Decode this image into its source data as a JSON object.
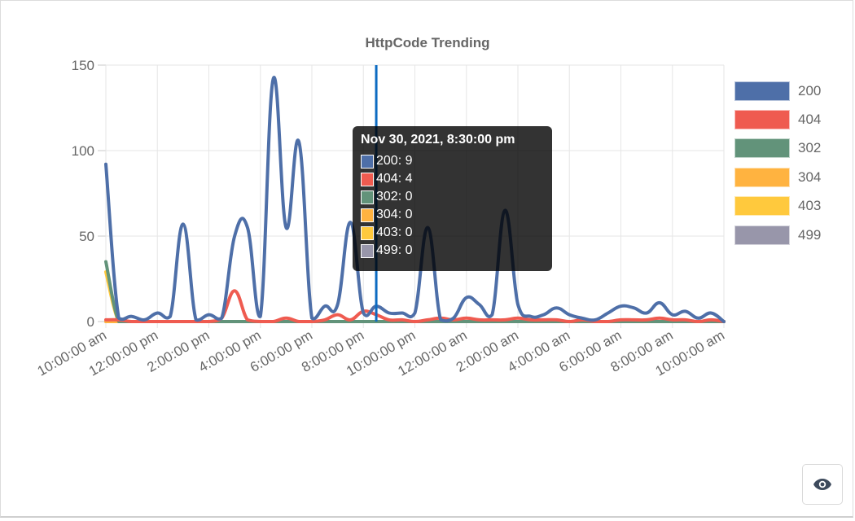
{
  "chart_data": {
    "type": "line",
    "title": "HttpCode Trending",
    "xlabel": "",
    "ylabel": "",
    "ylim": [
      0,
      150
    ],
    "yticks": [
      0,
      50,
      100,
      150
    ],
    "grid": true,
    "legend_position": "right",
    "x_tick_labels": [
      "10:00:00 am",
      "12:00:00 pm",
      "2:00:00 pm",
      "4:00:00 pm",
      "6:00:00 pm",
      "8:00:00 pm",
      "10:00:00 pm",
      "12:00:00 am",
      "2:00:00 am",
      "4:00:00 am",
      "6:00:00 am",
      "8:00:00 am",
      "10:00:00 am"
    ],
    "x": [
      "10:00 am",
      "10:30 am",
      "11:00 am",
      "11:30 am",
      "12:00 pm",
      "12:30 pm",
      "1:00 pm",
      "1:30 pm",
      "2:00 pm",
      "2:30 pm",
      "3:00 pm",
      "3:30 pm",
      "4:00 pm",
      "4:30 pm",
      "5:00 pm",
      "5:30 pm",
      "6:00 pm",
      "6:30 pm",
      "7:00 pm",
      "7:30 pm",
      "8:00 pm",
      "8:30 pm",
      "9:00 pm",
      "9:30 pm",
      "10:00 pm",
      "10:30 pm",
      "11:00 pm",
      "11:30 pm",
      "12:00 am",
      "12:30 am",
      "1:00 am",
      "1:30 am",
      "2:00 am",
      "2:30 am",
      "3:00 am",
      "3:30 am",
      "4:00 am",
      "4:30 am",
      "5:00 am",
      "5:30 am",
      "6:00 am",
      "6:30 am",
      "7:00 am",
      "7:30 am",
      "8:00 am",
      "8:30 am",
      "9:00 am",
      "9:30 am",
      "10:00 am"
    ],
    "series": [
      {
        "name": "200",
        "color": "#4e6fa8",
        "values": [
          92,
          2,
          3,
          1,
          5,
          3,
          57,
          1,
          4,
          2,
          50,
          55,
          3,
          142,
          55,
          105,
          2,
          9,
          10,
          58,
          5,
          9,
          5,
          5,
          5,
          55,
          1,
          2,
          14,
          10,
          4,
          65,
          10,
          3,
          4,
          8,
          4,
          2,
          1,
          5,
          9,
          8,
          5,
          11,
          4,
          6,
          2,
          5,
          0
        ]
      },
      {
        "name": "404",
        "color": "#ef5b50",
        "values": [
          1,
          1,
          0,
          0,
          0,
          0,
          0,
          0,
          0,
          2,
          18,
          1,
          0,
          0,
          2,
          0,
          0,
          1,
          4,
          1,
          6,
          4,
          1,
          1,
          0,
          1,
          2,
          1,
          2,
          1,
          1,
          1,
          2,
          1,
          1,
          1,
          0,
          1,
          0,
          0,
          1,
          1,
          1,
          2,
          1,
          1,
          0,
          1,
          0
        ]
      },
      {
        "name": "302",
        "color": "#62937a",
        "values": [
          35,
          0,
          0,
          0,
          0,
          0,
          0,
          0,
          0,
          0,
          0,
          0,
          0,
          0,
          0,
          0,
          0,
          0,
          0,
          0,
          0,
          0,
          0,
          0,
          0,
          0,
          0,
          0,
          0,
          0,
          0,
          0,
          0,
          0,
          0,
          0,
          0,
          0,
          0,
          0,
          0,
          0,
          0,
          0,
          0,
          0,
          0,
          0,
          0
        ]
      },
      {
        "name": "304",
        "color": "#ffb340",
        "values": [
          0,
          0,
          0,
          0,
          0,
          0,
          0,
          0,
          0,
          0,
          0,
          0,
          0,
          0,
          0,
          0,
          0,
          0,
          0,
          0,
          0,
          0,
          0,
          0,
          0,
          0,
          0,
          0,
          0,
          0,
          0,
          0,
          0,
          0,
          0,
          0,
          0,
          0,
          0,
          0,
          0,
          0,
          0,
          0,
          0,
          0,
          0,
          0,
          0
        ]
      },
      {
        "name": "403",
        "color": "#ffc93d",
        "values": [
          29,
          0,
          0,
          0,
          0,
          0,
          0,
          0,
          0,
          0,
          0,
          0,
          0,
          0,
          0,
          0,
          0,
          0,
          0,
          0,
          0,
          0,
          0,
          0,
          0,
          0,
          0,
          0,
          0,
          0,
          0,
          0,
          0,
          0,
          0,
          0,
          0,
          0,
          0,
          0,
          0,
          0,
          0,
          0,
          0,
          0,
          0,
          0,
          0
        ]
      },
      {
        "name": "499",
        "color": "#9896aa",
        "values": [
          0,
          0,
          0,
          0,
          0,
          0,
          0,
          0,
          0,
          0,
          0,
          0,
          0,
          0,
          0,
          0,
          0,
          0,
          0,
          0,
          0,
          0,
          0,
          0,
          0,
          0,
          0,
          0,
          0,
          0,
          0,
          0,
          0,
          0,
          0,
          0,
          0,
          0,
          0,
          0,
          0,
          0,
          0,
          0,
          0,
          0,
          0,
          0,
          0
        ]
      }
    ],
    "hover_index": 21
  },
  "tooltip": {
    "title": "Nov 30, 2021, 8:30:00 pm",
    "rows": [
      {
        "label": "200: 9",
        "color": "#4e6fa8"
      },
      {
        "label": "404: 4",
        "color": "#ef5b50"
      },
      {
        "label": "302: 0",
        "color": "#62937a"
      },
      {
        "label": "304: 0",
        "color": "#ffb340"
      },
      {
        "label": "403: 0",
        "color": "#ffc93d"
      },
      {
        "label": "499: 0",
        "color": "#9896aa"
      }
    ]
  },
  "legend": [
    {
      "label": "200",
      "color": "#4e6fa8"
    },
    {
      "label": "404",
      "color": "#ef5b50"
    },
    {
      "label": "302",
      "color": "#62937a"
    },
    {
      "label": "304",
      "color": "#ffb340"
    },
    {
      "label": "403",
      "color": "#ffc93d"
    },
    {
      "label": "499",
      "color": "#9896aa"
    }
  ],
  "toolbar": {
    "view_icon": "eye-icon"
  }
}
